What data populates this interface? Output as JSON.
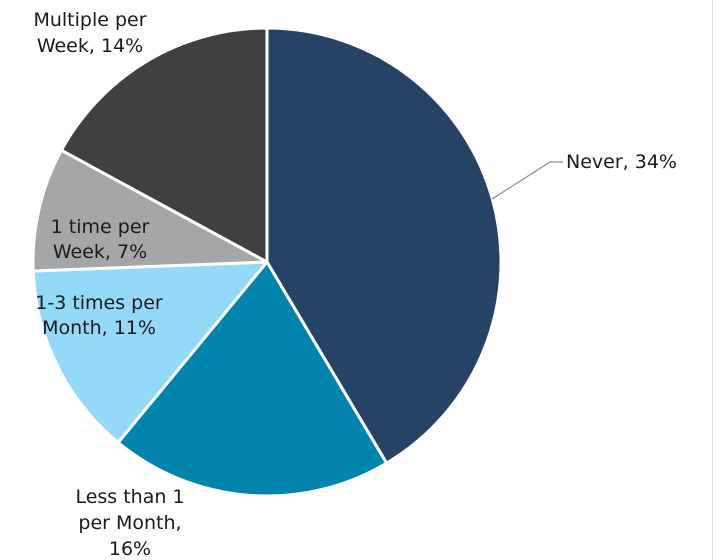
{
  "chart_data": {
    "type": "pie",
    "title": "",
    "slices": [
      {
        "label": "Never, 34%",
        "value": 34,
        "color": "#264366"
      },
      {
        "label": "Less than 1 per Month, 16%",
        "value": 16,
        "color": "#0284ad"
      },
      {
        "label": "1-3  times per Month, 11%",
        "value": 11,
        "color": "#94d9f8"
      },
      {
        "label": "1 time per Week, 7%",
        "value": 7,
        "color": "#a5a6a8"
      },
      {
        "label": "Multiple per Week, 14%",
        "value": 14,
        "color": "#404040"
      }
    ],
    "start": "12 o'clock",
    "direction": "clockwise",
    "slice_border_color": "#ffffff",
    "leader_line_color": "#8c8c8c"
  },
  "labels": {
    "never": {
      "lines": [
        "Never, 34%"
      ]
    },
    "less_than_1": {
      "lines": [
        "Less than 1",
        "per Month,",
        "16%"
      ]
    },
    "one_to_three": {
      "lines": [
        "1-3  times per",
        "Month, 11%"
      ]
    },
    "one_time": {
      "lines": [
        "1 time per",
        "Week, 7%"
      ]
    },
    "multiple": {
      "lines": [
        "Multiple per",
        "Week, 14%"
      ]
    }
  }
}
